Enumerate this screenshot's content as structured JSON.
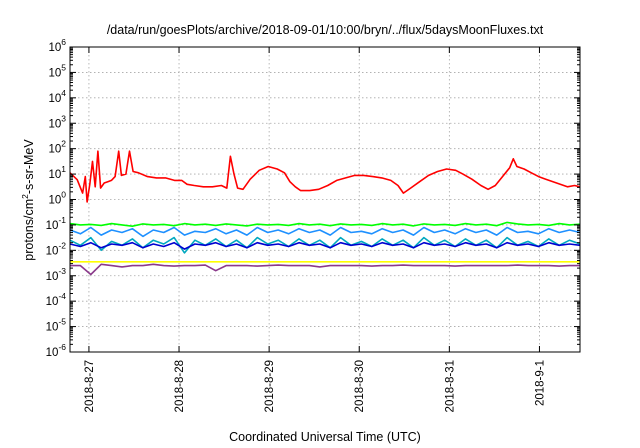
{
  "chart_data": {
    "type": "line",
    "title": "/data/run/goesPlots/archive/2018-09-01/10:00/bryn/../flux/5daysMoonFluxes.txt",
    "xlabel": "Coordinated Universal Time (UTC)",
    "ylabel": {
      "pre": "protons/cm",
      "sup": "2",
      "post": "-s-sr-MeV"
    },
    "xlim": [
      0,
      5.66
    ],
    "xticks": [
      {
        "x": 0.21,
        "label": "2018-8-27"
      },
      {
        "x": 1.21,
        "label": "2018-8-28"
      },
      {
        "x": 2.21,
        "label": "2018-8-29"
      },
      {
        "x": 3.21,
        "label": "2018-8-30"
      },
      {
        "x": 4.21,
        "label": "2018-8-31"
      },
      {
        "x": 5.21,
        "label": "2018-9-1"
      }
    ],
    "yscale": "log",
    "ylim": [
      -6,
      6
    ],
    "yticks": [
      {
        "base": "10",
        "exp": "-6"
      },
      {
        "base": "10",
        "exp": "-5"
      },
      {
        "base": "10",
        "exp": "-4"
      },
      {
        "base": "10",
        "exp": "-3"
      },
      {
        "base": "10",
        "exp": "-2"
      },
      {
        "base": "10",
        "exp": "-1"
      },
      {
        "base": "10",
        "exp": "0"
      },
      {
        "base": "10",
        "exp": "1"
      },
      {
        "base": "10",
        "exp": "2"
      },
      {
        "base": "10",
        "exp": "3"
      },
      {
        "base": "10",
        "exp": "4"
      },
      {
        "base": "10",
        "exp": "5"
      },
      {
        "base": "10",
        "exp": "6"
      }
    ],
    "grid": true,
    "series": [
      {
        "color": "#00ff00",
        "log_values": [
          -0.95,
          -1.0,
          -0.98,
          -1.02,
          -0.95,
          -1.0,
          -1.05,
          -0.96,
          -1.0,
          -0.98,
          -1.03,
          -0.95,
          -1.0,
          -0.97,
          -1.02,
          -0.96,
          -1.0,
          -1.04,
          -0.97,
          -1.0,
          -0.98,
          -1.02,
          -0.95,
          -1.0,
          -0.97,
          -1.03,
          -0.96,
          -1.0,
          -0.98,
          -1.02,
          -0.95,
          -1.0,
          -0.97,
          -1.04,
          -0.96,
          -1.0,
          -0.98,
          -1.02,
          -0.95,
          -1.0,
          -0.97,
          -1.03,
          -0.9,
          -0.96,
          -1.0,
          -0.98,
          -1.02,
          -0.95,
          -1.0,
          -0.97
        ]
      },
      {
        "color": "#1e90ff",
        "log_values": [
          -1.2,
          -1.35,
          -1.1,
          -1.4,
          -1.2,
          -1.3,
          -1.15,
          -1.45,
          -1.2,
          -1.3,
          -1.1,
          -1.4,
          -1.25,
          -1.3,
          -1.15,
          -1.35,
          -1.2,
          -1.4,
          -1.1,
          -1.3,
          -1.2,
          -1.35,
          -1.15,
          -1.3,
          -1.2,
          -1.4,
          -1.1,
          -1.3,
          -1.25,
          -1.35,
          -1.15,
          -1.3,
          -1.2,
          -1.4,
          -1.1,
          -1.3,
          -1.2,
          -1.35,
          -1.15,
          -1.3,
          -1.2,
          -1.4,
          -1.1,
          -1.3,
          -1.25,
          -1.35,
          -1.15,
          -1.3,
          -1.2,
          -1.3
        ]
      },
      {
        "color": "#00a8c0",
        "log_values": [
          -1.6,
          -1.8,
          -1.5,
          -2.0,
          -1.65,
          -1.8,
          -1.55,
          -1.9,
          -1.6,
          -1.75,
          -1.5,
          -2.1,
          -1.6,
          -1.8,
          -1.55,
          -1.85,
          -1.6,
          -1.9,
          -1.5,
          -1.75,
          -1.6,
          -1.85,
          -1.55,
          -1.8,
          -1.6,
          -1.9,
          -1.5,
          -1.8,
          -1.65,
          -1.85,
          -1.55,
          -1.8,
          -1.6,
          -1.9,
          -1.5,
          -1.8,
          -1.6,
          -1.85,
          -1.55,
          -1.8,
          -1.6,
          -1.9,
          -1.5,
          -1.8,
          -1.65,
          -1.85,
          -1.55,
          -1.8,
          -1.6,
          -1.75
        ]
      },
      {
        "color": "#0000d0",
        "log_values": [
          -1.75,
          -1.85,
          -1.7,
          -1.9,
          -1.75,
          -1.8,
          -1.7,
          -1.9,
          -1.75,
          -1.85,
          -1.7,
          -1.95,
          -1.75,
          -1.8,
          -1.7,
          -1.85,
          -1.75,
          -1.9,
          -1.7,
          -1.8,
          -1.75,
          -1.85,
          -1.7,
          -1.8,
          -1.75,
          -1.9,
          -1.7,
          -1.8,
          -1.75,
          -1.85,
          -1.7,
          -1.8,
          -1.75,
          -1.9,
          -1.7,
          -1.8,
          -1.75,
          -1.85,
          -1.7,
          -1.8,
          -1.75,
          -1.9,
          -1.7,
          -1.8,
          -1.75,
          -1.85,
          -1.7,
          -1.8,
          -1.75,
          -1.8
        ]
      },
      {
        "color": "#ffff00",
        "log_values": [
          -2.45,
          -2.45,
          -2.45,
          -2.45,
          -2.45,
          -2.45,
          -2.45,
          -2.45,
          -2.45,
          -2.45,
          -2.45,
          -2.45,
          -2.45,
          -2.45,
          -2.45,
          -2.45,
          -2.45,
          -2.45,
          -2.45,
          -2.45,
          -2.45,
          -2.45,
          -2.45,
          -2.45,
          -2.45,
          -2.45,
          -2.45,
          -2.45,
          -2.45,
          -2.45,
          -2.45,
          -2.45,
          -2.45,
          -2.45,
          -2.45,
          -2.45,
          -2.45,
          -2.45,
          -2.45,
          -2.45,
          -2.45,
          -2.45,
          -2.45,
          -2.45,
          -2.45,
          -2.45,
          -2.45,
          -2.45,
          -2.45,
          -2.45
        ]
      },
      {
        "color": "#8b3a8b",
        "log_values": [
          -2.6,
          -2.6,
          -2.95,
          -2.55,
          -2.6,
          -2.65,
          -2.6,
          -2.6,
          -2.55,
          -2.6,
          -2.62,
          -2.6,
          -2.6,
          -2.58,
          -2.8,
          -2.6,
          -2.6,
          -2.6,
          -2.62,
          -2.6,
          -2.58,
          -2.6,
          -2.6,
          -2.6,
          -2.65,
          -2.6,
          -2.6,
          -2.6,
          -2.6,
          -2.62,
          -2.6,
          -2.6,
          -2.58,
          -2.6,
          -2.6,
          -2.6,
          -2.6,
          -2.62,
          -2.6,
          -2.6,
          -2.6,
          -2.6,
          -2.6,
          -2.58,
          -2.6,
          -2.6,
          -2.6,
          -2.62,
          -2.6,
          -2.6
        ]
      },
      {
        "color": "#ff0000",
        "points": [
          [
            0,
            1.05
          ],
          [
            0.08,
            0.78
          ],
          [
            0.14,
            0.25
          ],
          [
            0.17,
            0.9
          ],
          [
            0.19,
            -0.1
          ],
          [
            0.22,
            0.6
          ],
          [
            0.25,
            1.5
          ],
          [
            0.28,
            0.5
          ],
          [
            0.31,
            1.9
          ],
          [
            0.34,
            0.45
          ],
          [
            0.38,
            0.65
          ],
          [
            0.42,
            0.7
          ],
          [
            0.46,
            0.75
          ],
          [
            0.5,
            0.9
          ],
          [
            0.54,
            1.9
          ],
          [
            0.57,
            0.95
          ],
          [
            0.62,
            1.0
          ],
          [
            0.66,
            1.9
          ],
          [
            0.7,
            1.1
          ],
          [
            0.76,
            1.05
          ],
          [
            0.86,
            0.9
          ],
          [
            0.96,
            0.85
          ],
          [
            1.06,
            0.85
          ],
          [
            1.16,
            0.75
          ],
          [
            1.24,
            0.75
          ],
          [
            1.3,
            0.6
          ],
          [
            1.38,
            0.55
          ],
          [
            1.48,
            0.5
          ],
          [
            1.58,
            0.5
          ],
          [
            1.68,
            0.55
          ],
          [
            1.74,
            0.45
          ],
          [
            1.78,
            1.7
          ],
          [
            1.82,
            1.0
          ],
          [
            1.86,
            0.45
          ],
          [
            1.92,
            0.4
          ],
          [
            2.0,
            0.8
          ],
          [
            2.1,
            1.15
          ],
          [
            2.2,
            1.3
          ],
          [
            2.3,
            1.2
          ],
          [
            2.38,
            1.05
          ],
          [
            2.44,
            0.7
          ],
          [
            2.5,
            0.5
          ],
          [
            2.56,
            0.35
          ],
          [
            2.66,
            0.35
          ],
          [
            2.76,
            0.4
          ],
          [
            2.86,
            0.55
          ],
          [
            2.96,
            0.75
          ],
          [
            3.06,
            0.85
          ],
          [
            3.16,
            0.95
          ],
          [
            3.26,
            0.95
          ],
          [
            3.36,
            0.9
          ],
          [
            3.46,
            0.85
          ],
          [
            3.56,
            0.75
          ],
          [
            3.64,
            0.55
          ],
          [
            3.7,
            0.25
          ],
          [
            3.78,
            0.45
          ],
          [
            3.88,
            0.7
          ],
          [
            3.98,
            0.95
          ],
          [
            4.08,
            1.1
          ],
          [
            4.18,
            1.2
          ],
          [
            4.28,
            1.15
          ],
          [
            4.36,
            1.0
          ],
          [
            4.46,
            0.8
          ],
          [
            4.56,
            0.55
          ],
          [
            4.64,
            0.4
          ],
          [
            4.72,
            0.55
          ],
          [
            4.8,
            0.9
          ],
          [
            4.88,
            1.25
          ],
          [
            4.92,
            1.6
          ],
          [
            4.96,
            1.3
          ],
          [
            5.04,
            1.2
          ],
          [
            5.12,
            1.05
          ],
          [
            5.2,
            0.9
          ],
          [
            5.28,
            0.8
          ],
          [
            5.36,
            0.7
          ],
          [
            5.44,
            0.6
          ],
          [
            5.52,
            0.5
          ],
          [
            5.6,
            0.55
          ],
          [
            5.66,
            0.5
          ]
        ]
      }
    ]
  }
}
